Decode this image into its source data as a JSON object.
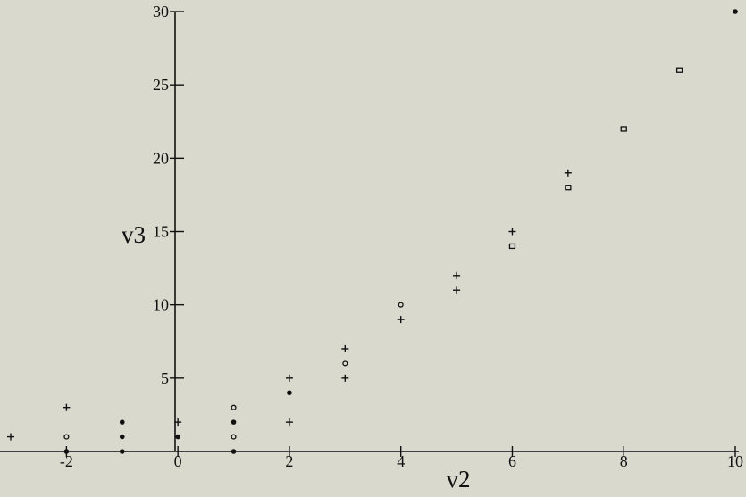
{
  "chart_data": {
    "type": "scatter",
    "title": "",
    "xlabel": "v2",
    "ylabel": "v3",
    "xlim": [
      -3,
      10
    ],
    "ylim": [
      0,
      30
    ],
    "x_ticks": [
      {
        "value": -2,
        "label": "-2"
      },
      {
        "value": 0,
        "label": "0"
      },
      {
        "value": 2,
        "label": "2"
      },
      {
        "value": 4,
        "label": "4"
      },
      {
        "value": 6,
        "label": "6"
      },
      {
        "value": 8,
        "label": "8"
      },
      {
        "value": 10,
        "label": "10"
      }
    ],
    "y_ticks": [
      {
        "value": 5,
        "label": "5"
      },
      {
        "value": 10,
        "label": "10"
      },
      {
        "value": 15,
        "label": "15"
      },
      {
        "value": 20,
        "label": "20"
      },
      {
        "value": 25,
        "label": "25"
      },
      {
        "value": 30,
        "label": "30"
      }
    ],
    "grid": false,
    "background_color": "#d9d9cd",
    "ink_color": "#111111",
    "series": [
      {
        "marker": "plus",
        "points": [
          [
            -3,
            1
          ],
          [
            -2,
            3
          ],
          [
            0,
            2
          ],
          [
            2,
            2
          ],
          [
            2,
            5
          ],
          [
            3,
            5
          ],
          [
            3,
            7
          ],
          [
            4,
            9
          ],
          [
            5,
            11
          ],
          [
            5,
            12
          ],
          [
            6,
            15
          ],
          [
            7,
            19
          ]
        ]
      },
      {
        "marker": "open-circle",
        "points": [
          [
            -2,
            1
          ],
          [
            1,
            1
          ],
          [
            1,
            3
          ],
          [
            3,
            6
          ],
          [
            4,
            10
          ]
        ]
      },
      {
        "marker": "filled-circle",
        "points": [
          [
            -2,
            0
          ],
          [
            -1,
            0
          ],
          [
            -1,
            1
          ],
          [
            -1,
            2
          ],
          [
            0,
            1
          ],
          [
            1,
            0
          ],
          [
            1,
            2
          ],
          [
            2,
            4
          ],
          [
            10,
            30
          ]
        ]
      },
      {
        "marker": "open-square",
        "points": [
          [
            6,
            14
          ],
          [
            7,
            18
          ],
          [
            8,
            22
          ],
          [
            9,
            26
          ]
        ]
      }
    ]
  }
}
